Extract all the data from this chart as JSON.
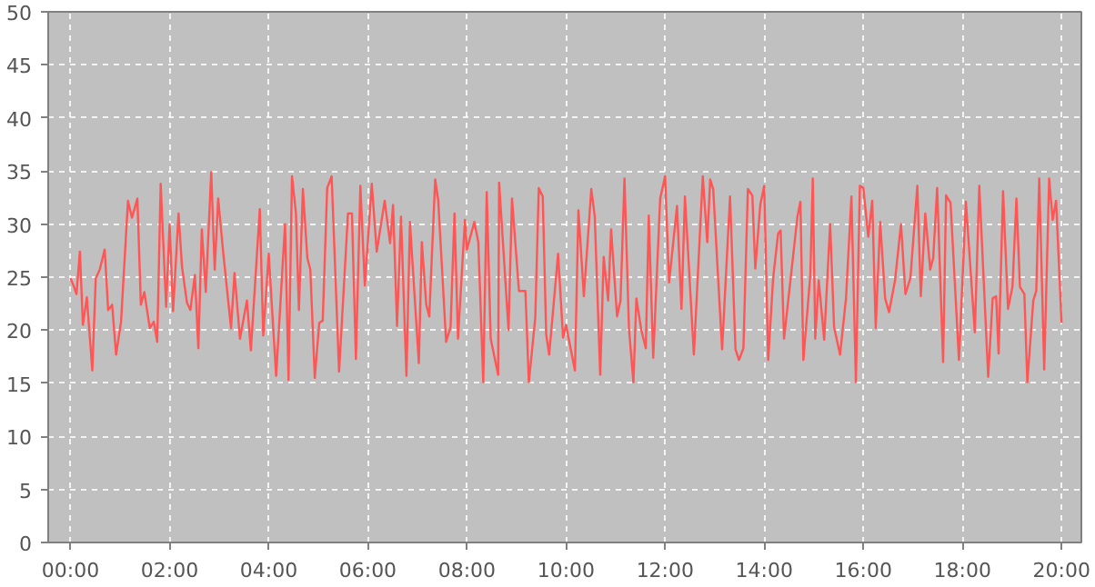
{
  "chart_data": {
    "type": "line",
    "grid": true,
    "xlim": [
      -0.45,
      20.4
    ],
    "ylim": [
      0,
      50
    ],
    "xticks": [
      {
        "value": 0,
        "label": "00:00"
      },
      {
        "value": 2,
        "label": "02:00"
      },
      {
        "value": 4,
        "label": "04:00"
      },
      {
        "value": 6,
        "label": "06:00"
      },
      {
        "value": 8,
        "label": "08:00"
      },
      {
        "value": 10,
        "label": "10:00"
      },
      {
        "value": 12,
        "label": "12:00"
      },
      {
        "value": 14,
        "label": "14:00"
      },
      {
        "value": 16,
        "label": "16:00"
      },
      {
        "value": 18,
        "label": "18:00"
      },
      {
        "value": 20,
        "label": "20:00"
      }
    ],
    "yticks": [
      0,
      5,
      10,
      15,
      20,
      25,
      30,
      35,
      40,
      45,
      50
    ],
    "x": [
      0,
      0.07,
      0.12,
      0.19,
      0.25,
      0.33,
      0.44,
      0.51,
      0.59,
      0.69,
      0.76,
      0.84,
      0.92,
      1.02,
      1.16,
      1.24,
      1.35,
      1.42,
      1.49,
      1.6,
      1.68,
      1.75,
      1.82,
      1.93,
      2,
      2.07,
      2.18,
      2.25,
      2.35,
      2.42,
      2.51,
      2.58,
      2.65,
      2.73,
      2.84,
      2.91,
      2.98,
      3.08,
      3.24,
      3.31,
      3.42,
      3.56,
      3.64,
      3.82,
      3.89,
      4,
      4.15,
      4.33,
      4.4,
      4.47,
      4.55,
      4.61,
      4.69,
      4.78,
      4.84,
      4.93,
      5.02,
      5.09,
      5.18,
      5.27,
      5.42,
      5.6,
      5.68,
      5.76,
      5.85,
      5.94,
      6.08,
      6.18,
      6.34,
      6.45,
      6.51,
      6.59,
      6.67,
      6.78,
      6.85,
      7.03,
      7.09,
      7.18,
      7.24,
      7.36,
      7.42,
      7.58,
      7.67,
      7.75,
      7.82,
      7.96,
      8,
      8.15,
      8.23,
      8.33,
      8.4,
      8.48,
      8.63,
      8.65,
      8.84,
      8.91,
      9.05,
      9.18,
      9.25,
      9.38,
      9.45,
      9.53,
      9.6,
      9.66,
      9.84,
      9.94,
      10,
      10.18,
      10.25,
      10.36,
      10.51,
      10.58,
      10.69,
      10.76,
      10.85,
      10.91,
      11.03,
      11.1,
      11.18,
      11.27,
      11.36,
      11.42,
      11.52,
      11.61,
      11.67,
      11.76,
      11.9,
      12,
      12.08,
      12.24,
      12.33,
      12.4,
      12.58,
      12.76,
      12.85,
      12.91,
      12.97,
      13.15,
      13.31,
      13.42,
      13.49,
      13.58,
      13.67,
      13.76,
      13.82,
      13.92,
      14,
      14.08,
      14.18,
      14.28,
      14.33,
      14.4,
      14.67,
      14.73,
      14.79,
      14.93,
      14.98,
      15.03,
      15.1,
      15.21,
      15.33,
      15.41,
      15.53,
      15.65,
      15.76,
      15.85,
      15.93,
      16,
      16.1,
      16.18,
      16.25,
      16.34,
      16.44,
      16.52,
      16.64,
      16.76,
      16.85,
      16.95,
      17.09,
      17.16,
      17.25,
      17.35,
      17.41,
      17.49,
      17.61,
      17.67,
      17.76,
      17.93,
      18.07,
      18.25,
      18.34,
      18.52,
      18.61,
      18.68,
      18.73,
      18.82,
      18.92,
      19.01,
      19.09,
      19.16,
      19.25,
      19.31,
      19.43,
      19.49,
      19.55,
      19.65,
      19.75,
      19.82,
      19.89,
      20
    ],
    "series": [
      {
        "color": "#ff5555",
        "values": [
          24.9,
          24.1,
          23.4,
          27.4,
          20.5,
          23.1,
          16.2,
          24.9,
          25.7,
          27.6,
          21.9,
          22.4,
          17.7,
          20.8,
          32.2,
          30.6,
          32.4,
          22.4,
          23.6,
          20.2,
          20.8,
          18.9,
          33.8,
          22.2,
          30,
          21.8,
          31,
          26,
          22.6,
          21.9,
          25.2,
          18.3,
          29.5,
          23.6,
          34.9,
          25.7,
          32.4,
          27.4,
          20.2,
          25.4,
          19.2,
          22.8,
          18.1,
          31.4,
          19.5,
          27.2,
          15.7,
          30,
          15.3,
          34.5,
          31,
          21.9,
          33.3,
          26.8,
          25.7,
          15.5,
          20.7,
          20.9,
          33.4,
          34.5,
          16.1,
          31,
          31,
          17.3,
          33.6,
          24.2,
          33.8,
          27.4,
          32.2,
          28.2,
          31.8,
          20.4,
          30.7,
          15.7,
          30.2,
          16.9,
          28.3,
          22.4,
          21.3,
          34.2,
          32.3,
          18.9,
          20.3,
          31,
          19.2,
          30.4,
          27.6,
          30.2,
          28.3,
          15.1,
          33,
          19.2,
          15.8,
          33.9,
          20,
          32.4,
          23.7,
          23.7,
          15.1,
          21.2,
          33.4,
          32.6,
          19.6,
          17.7,
          27.2,
          19.3,
          20.5,
          16.2,
          31.3,
          23.2,
          33.3,
          30.7,
          15.8,
          26.9,
          22.8,
          29.5,
          21.3,
          22.8,
          34.3,
          20.2,
          15.1,
          23,
          20,
          18.3,
          30.8,
          17.4,
          32.4,
          34.5,
          24.5,
          31.7,
          22,
          32.6,
          17.7,
          34.5,
          28.3,
          34.2,
          33.3,
          18.2,
          32.6,
          18.2,
          17.2,
          18.3,
          33.3,
          32.7,
          25.8,
          31.8,
          33.6,
          17.2,
          24.9,
          29.1,
          29.4,
          19.2,
          30.7,
          32.1,
          17.2,
          25.2,
          34.3,
          19.2,
          24.7,
          19.1,
          30,
          20.3,
          17.7,
          23,
          32.6,
          15.1,
          33.6,
          33.4,
          28.8,
          32.2,
          20.2,
          30.2,
          23,
          21.7,
          24.7,
          30,
          23.4,
          24.9,
          33.6,
          23.2,
          31,
          25.7,
          26.8,
          33.4,
          17,
          32.7,
          32,
          17.2,
          32.1,
          19.8,
          33.6,
          15.6,
          23,
          23.2,
          17.8,
          33.1,
          22,
          24.1,
          32.4,
          24.1,
          23.4,
          15.1,
          22.8,
          23.7,
          34.3,
          16.3,
          34.3,
          30.4,
          32.2,
          20.7
        ]
      }
    ]
  }
}
